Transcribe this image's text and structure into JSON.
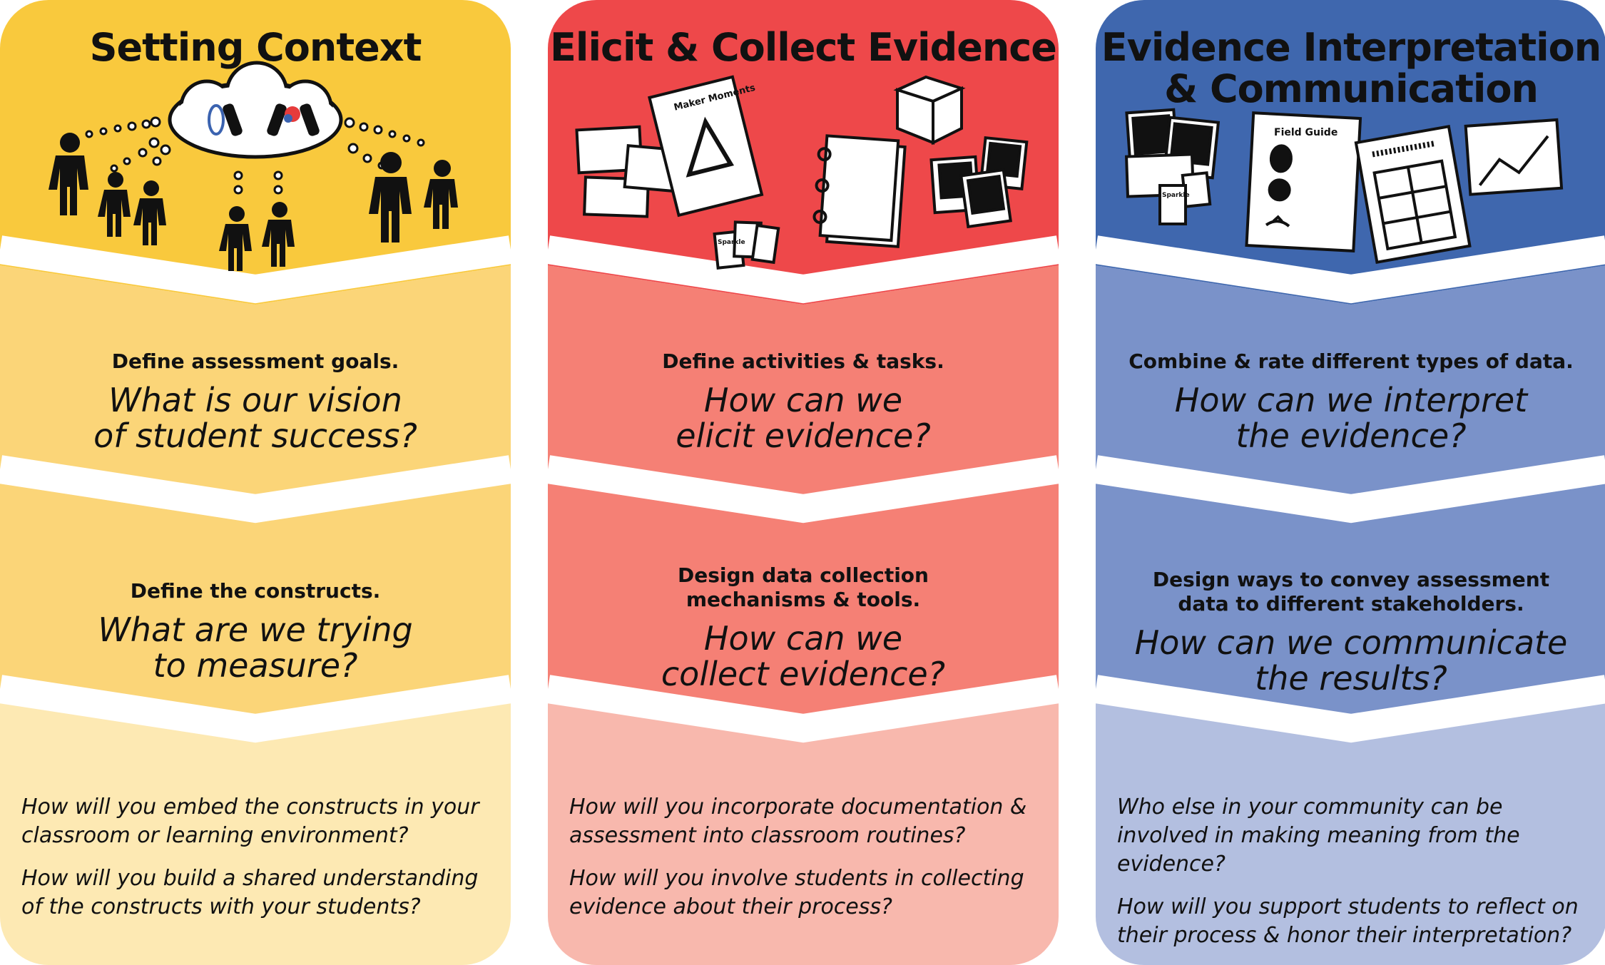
{
  "columns": [
    {
      "title_lines": [
        "Setting Context"
      ],
      "colors": {
        "top": "#F9C93D",
        "mid1": "#FBD578",
        "mid2": "#FBD578",
        "bottom": "#FDE9B3",
        "gap": "#ffffff"
      },
      "stage1": {
        "lead": [
          "Define assessment goals."
        ],
        "question": [
          "What is our vision",
          "of student success?"
        ]
      },
      "stage2": {
        "lead": [
          "Define the constructs."
        ],
        "question": [
          "What are we trying",
          "to measure?"
        ]
      },
      "prompts": [
        "How will you embed the constructs in your classroom or learning environment?",
        "How will you build a shared understanding of the constructs with your students?"
      ],
      "icons": [
        "people-thinking-cloud-icon"
      ]
    },
    {
      "title_lines": [
        "Elicit & Collect Evidence"
      ],
      "colors": {
        "top": "#EE484A",
        "mid1": "#F58075",
        "mid2": "#F58075",
        "bottom": "#F8B8AD",
        "gap": "#ffffff"
      },
      "stage1": {
        "lead": [
          "Define activities & tasks."
        ],
        "question": [
          "How can we",
          "elicit evidence?"
        ]
      },
      "stage2": {
        "lead": [
          "Design data collection",
          "mechanisms & tools."
        ],
        "question": [
          "How can we",
          "collect evidence?"
        ]
      },
      "prompts": [
        "How will you incorporate documentation & assessment into classroom routines?",
        "How will you involve students in collecting evidence about their process?"
      ],
      "icons": [
        "cards-icon",
        "maker-moments-sheet-icon",
        "notebook-icon",
        "cube-icon",
        "photos-icon",
        "sparkle-cards-icon"
      ],
      "icon_labels": {
        "maker_moments": "Maker Moments",
        "sparkle": "Sparkle"
      }
    },
    {
      "title_lines": [
        "Evidence Interpretation",
        "& Communication"
      ],
      "colors": {
        "top": "#3F67AE",
        "mid1": "#7A92C9",
        "mid2": "#7A92C9",
        "bottom": "#B3BFE0",
        "gap": "#ffffff"
      },
      "stage1": {
        "lead": [
          "Combine & rate different types of data."
        ],
        "question": [
          "How can we interpret",
          "the evidence?"
        ]
      },
      "stage2": {
        "lead": [
          "Design ways to convey assessment",
          "data to different stakeholders."
        ],
        "question": [
          "How can we communicate",
          "the results?"
        ]
      },
      "prompts": [
        "Who else in your community can be involved in making meaning from the evidence?",
        "How will you support students to reflect on their process & honor their interpretation?"
      ],
      "icons": [
        "photos-icon",
        "field-guide-sheet-icon",
        "rubric-grid-icon",
        "line-chart-icon"
      ],
      "icon_labels": {
        "field_guide": "Field Guide",
        "sparkle": "Sparkle"
      }
    }
  ]
}
